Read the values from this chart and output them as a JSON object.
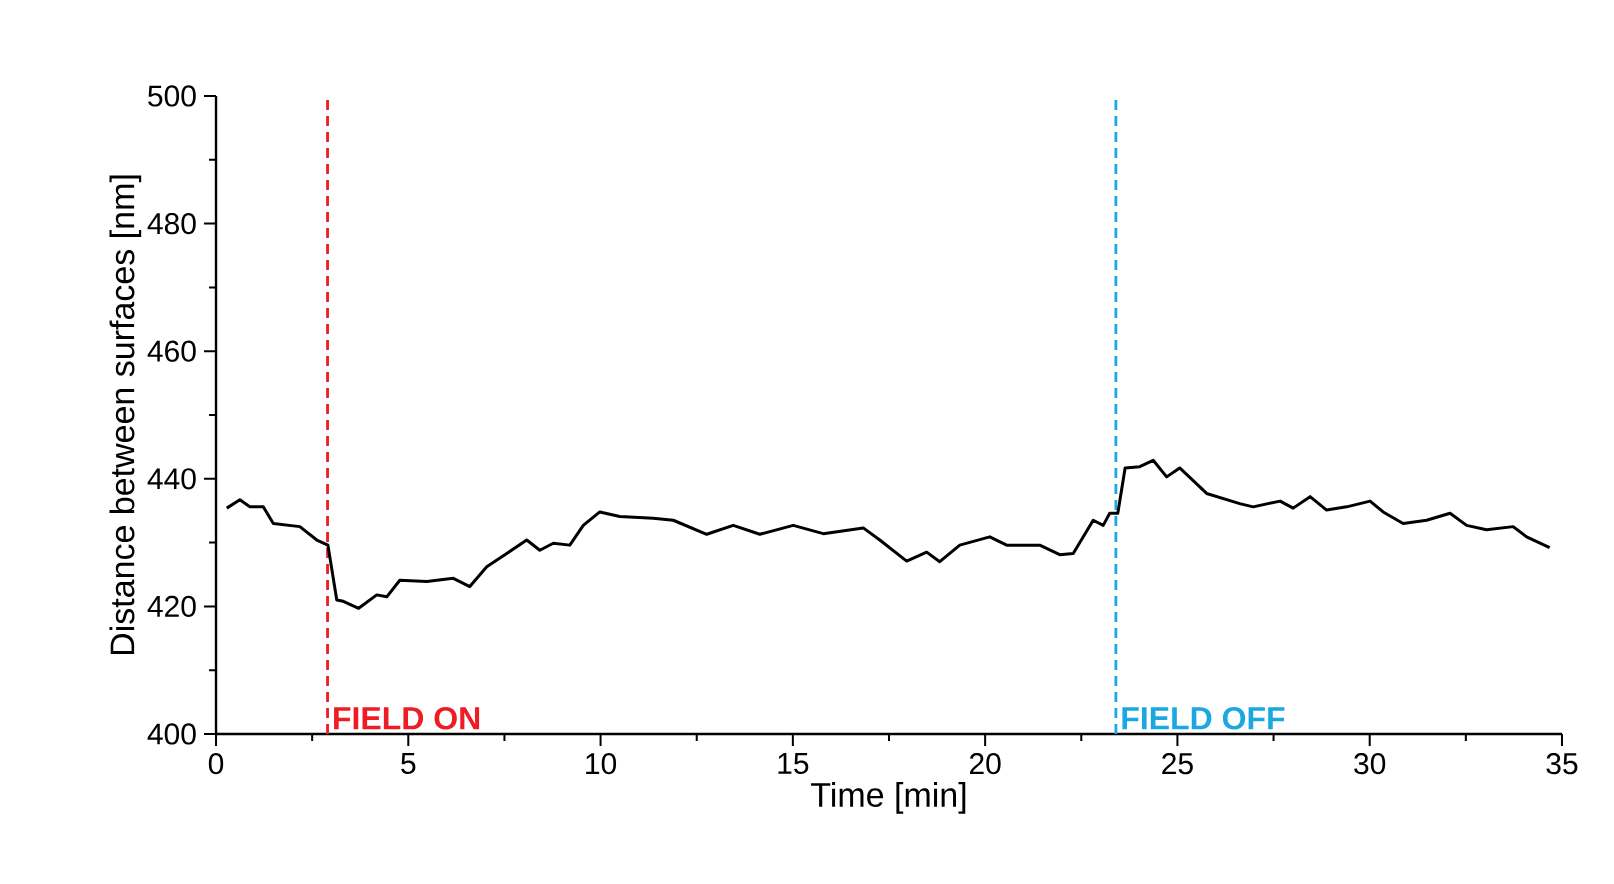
{
  "chart_data": {
    "type": "line",
    "xlabel": "Time [min]",
    "ylabel": "Distance between surfaces [nm]",
    "xlim": [
      0,
      35
    ],
    "ylim": [
      400,
      500
    ],
    "xticks": [
      0,
      5,
      10,
      15,
      20,
      25,
      30,
      35
    ],
    "yticks": [
      400,
      420,
      440,
      460,
      480,
      500
    ],
    "grid": false,
    "marker": "none",
    "line_style": "solid",
    "series": [
      {
        "color": "#000000",
        "x": [
          0.28,
          0.62,
          0.88,
          1.23,
          1.49,
          2.18,
          2.62,
          2.91,
          3.14,
          3.31,
          3.71,
          4.18,
          4.44,
          4.78,
          5.48,
          6.17,
          6.6,
          7.04,
          7.56,
          8.08,
          8.42,
          8.77,
          9.2,
          9.55,
          9.98,
          10.5,
          11.37,
          11.89,
          12.76,
          13.45,
          14.14,
          15.01,
          15.79,
          16.83,
          17.26,
          17.96,
          18.48,
          18.82,
          19.34,
          20.12,
          20.56,
          21.42,
          21.94,
          22.29,
          22.81,
          23.07,
          23.24,
          23.45,
          23.64,
          24.02,
          24.37,
          24.72,
          25.06,
          25.76,
          26.62,
          26.97,
          27.67,
          28.01,
          28.45,
          28.88,
          29.4,
          30.01,
          30.35,
          30.87,
          31.48,
          32.09,
          32.52,
          33.04,
          33.73,
          34.08,
          34.68
        ],
        "values": [
          435.4,
          436.7,
          435.6,
          435.6,
          433.0,
          432.5,
          430.4,
          429.6,
          421.0,
          420.8,
          419.7,
          421.8,
          421.5,
          424.1,
          423.9,
          424.4,
          423.1,
          426.2,
          428.3,
          430.4,
          428.8,
          429.9,
          429.6,
          432.7,
          434.8,
          434.1,
          433.8,
          433.5,
          431.3,
          432.7,
          431.3,
          432.7,
          431.4,
          432.3,
          430.4,
          427.1,
          428.5,
          427.0,
          429.6,
          430.9,
          429.6,
          429.6,
          428.1,
          428.3,
          433.5,
          432.7,
          434.6,
          434.6,
          441.7,
          441.9,
          442.9,
          440.3,
          441.7,
          437.7,
          436.1,
          435.6,
          436.5,
          435.4,
          437.2,
          435.1,
          435.6,
          436.5,
          434.8,
          433.0,
          433.5,
          434.6,
          432.7,
          432.0,
          432.5,
          430.9,
          429.2
        ]
      }
    ],
    "ref_lines": [
      {
        "axis": "x",
        "value": 2.9,
        "label": "FIELD ON",
        "color": "#ee1c25",
        "line_style": "dashed"
      },
      {
        "axis": "x",
        "value": 23.4,
        "label": "FIELD OFF",
        "color": "#1ba8e0",
        "line_style": "dashed"
      }
    ]
  }
}
